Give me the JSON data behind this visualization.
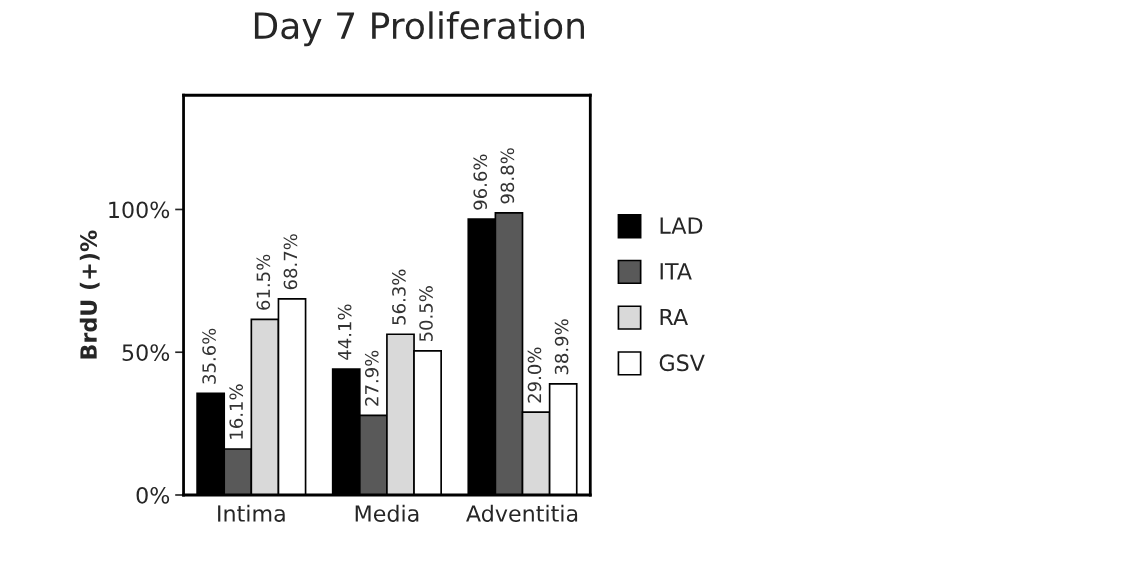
{
  "chart_data": {
    "type": "bar",
    "title": "Day 7 Proliferation",
    "ylabel": "BrdU (+)%",
    "categories": [
      "Intima",
      "Media",
      "Adventitia"
    ],
    "series": [
      {
        "name": "LAD",
        "color": "#000000",
        "values": [
          35.6,
          44.1,
          96.6
        ],
        "value_labels": [
          "35.6%",
          "44.1%",
          "96.6%"
        ]
      },
      {
        "name": "ITA",
        "color": "#595959",
        "values": [
          16.1,
          27.9,
          98.8
        ],
        "value_labels": [
          "16.1%",
          "27.9%",
          "98.8%"
        ]
      },
      {
        "name": "RA",
        "color": "#d9d9d9",
        "values": [
          61.5,
          56.3,
          29.0
        ],
        "value_labels": [
          "61.5%",
          "56.3%",
          "29.0%"
        ]
      },
      {
        "name": "GSV",
        "color": "#ffffff",
        "values": [
          68.7,
          50.5,
          38.9
        ],
        "value_labels": [
          "68.7%",
          "50.5%",
          "38.9%"
        ]
      }
    ],
    "ylim": [
      0,
      140
    ],
    "yticks": [
      {
        "value": 0,
        "label": "0%"
      },
      {
        "value": 50,
        "label": "50%"
      },
      {
        "value": 100,
        "label": "100%"
      }
    ],
    "grid": false,
    "legend": "right"
  }
}
